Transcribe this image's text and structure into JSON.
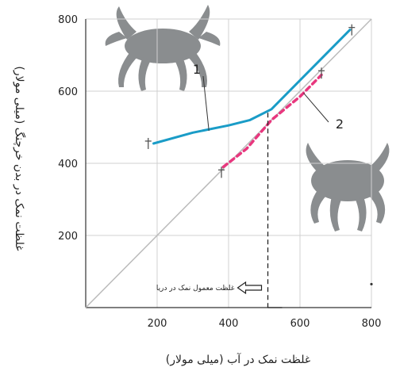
{
  "chart_data": {
    "type": "line",
    "xlabel": "غلظت نمک در آب (میلی مولار)",
    "ylabel": "غلظت نمک در بدن خرچنگ (میلی مولار)",
    "xlim": [
      0,
      800
    ],
    "ylim": [
      0,
      800
    ],
    "x_ticks": [
      200,
      400,
      600,
      800
    ],
    "y_ticks": [
      200,
      400,
      600,
      800
    ],
    "x_tick_labels": [
      "200",
      "400",
      "600",
      "800"
    ],
    "y_tick_labels": [
      "200",
      "400",
      "600",
      "800"
    ],
    "grid": true,
    "series": [
      {
        "name": "1",
        "color": "#1a9cc7",
        "style": "solid",
        "points": [
          [
            190,
            455
          ],
          [
            300,
            485
          ],
          [
            400,
            505
          ],
          [
            460,
            520
          ],
          [
            520,
            550
          ],
          [
            580,
            610
          ],
          [
            650,
            680
          ],
          [
            740,
            770
          ]
        ]
      },
      {
        "name": "2",
        "color": "#e8377e",
        "style": "dashed",
        "points": [
          [
            385,
            390
          ],
          [
            450,
            440
          ],
          [
            520,
            520
          ],
          [
            600,
            585
          ],
          [
            660,
            645
          ]
        ]
      }
    ],
    "reference_line": {
      "label": "",
      "points": [
        [
          0,
          0
        ],
        [
          800,
          800
        ]
      ],
      "color": "#bbbbbb"
    },
    "markers": [
      [
        175,
        455
      ],
      [
        380,
        375
      ],
      [
        660,
        650
      ],
      [
        745,
        770
      ]
    ],
    "seawater_marker": {
      "x": 510,
      "label": "غلظت معمول نمک در دریا"
    },
    "icons": [
      "crab-silhouette-icon",
      "crab-silhouette-icon"
    ]
  }
}
